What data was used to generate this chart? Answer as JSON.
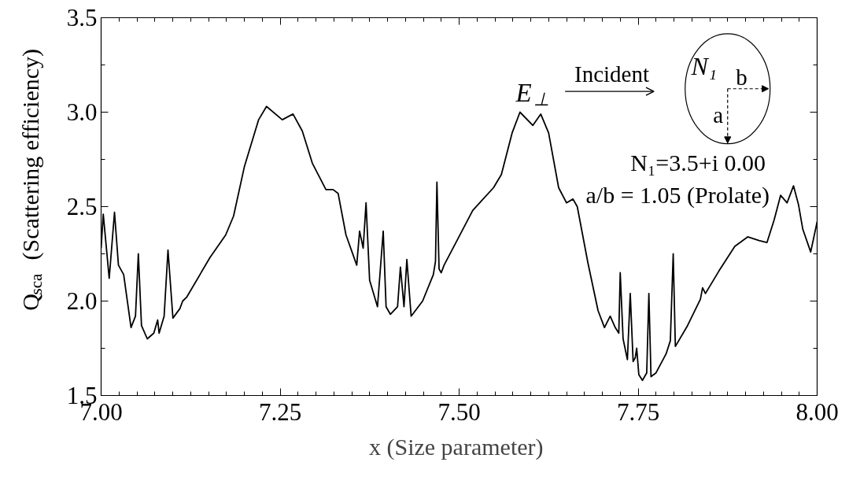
{
  "chart_data": {
    "type": "line",
    "xlabel": "x  (Size parameter)",
    "ylabel": "Q$_{sca}$  (Scattering efficiency)",
    "xlim": [
      7.0,
      8.0
    ],
    "xticks": [
      {
        "value": 7.0,
        "label": "7.00"
      },
      7.25,
      {
        "value": 7.5,
        "label": "7.50"
      },
      7.75,
      {
        "value": 8.0,
        "label": "8.00"
      }
    ],
    "ylim": [
      1.5,
      3.5
    ],
    "yticks": [
      1.5,
      {
        "value": 2.0,
        "label": "2.0"
      },
      2.5,
      {
        "value": 3.0,
        "label": "3.0"
      },
      3.5
    ],
    "grid": false,
    "marker": "none",
    "line_style": "solid",
    "annotations": [
      "E$_{⊥}$",
      "Incident",
      "N₁",
      "b",
      "a",
      "N₁=3.5+i 0.00",
      "a/b = 1.05 (Prolate)"
    ],
    "series": [
      {
        "color": "#000000",
        "x": [
          7.0,
          7.003,
          7.0113,
          7.0187,
          7.0242,
          7.0315,
          7.0418,
          7.048,
          7.052,
          7.0564,
          7.0645,
          7.0736,
          7.079,
          7.081,
          7.088,
          7.0934,
          7.1003,
          7.11,
          7.1139,
          7.1194,
          7.152,
          7.174,
          7.185,
          7.2,
          7.22,
          7.231,
          7.253,
          7.268,
          7.281,
          7.295,
          7.314,
          7.324,
          7.331,
          7.342,
          7.357,
          7.361,
          7.366,
          7.37,
          7.375,
          7.386,
          7.394,
          7.398,
          7.404,
          7.414,
          7.418,
          7.423,
          7.427,
          7.433,
          7.449,
          7.464,
          7.467,
          7.469,
          7.472,
          7.475,
          7.479,
          7.497,
          7.519,
          7.548,
          7.559,
          7.574,
          7.585,
          7.603,
          7.614,
          7.625,
          7.639,
          7.65,
          7.659,
          7.665,
          7.68,
          7.694,
          7.703,
          7.711,
          7.718,
          7.723,
          7.725,
          7.729,
          7.735,
          7.739,
          7.743,
          7.746,
          7.748,
          7.751,
          7.756,
          7.762,
          7.765,
          7.768,
          7.775,
          7.789,
          7.795,
          7.799,
          7.802,
          7.819,
          7.837,
          7.84,
          7.844,
          7.863,
          7.885,
          7.903,
          7.919,
          7.93,
          7.94,
          7.949,
          7.958,
          7.967,
          7.974,
          7.98,
          7.991,
          8.0
        ],
        "values": [
          2.28,
          2.46,
          2.12,
          2.47,
          2.19,
          2.14,
          1.86,
          1.92,
          2.25,
          1.87,
          1.8,
          1.83,
          1.9,
          1.83,
          1.92,
          2.27,
          1.91,
          1.96,
          2.0,
          2.02,
          2.23,
          2.35,
          2.45,
          2.71,
          2.96,
          3.03,
          2.96,
          2.99,
          2.9,
          2.73,
          2.59,
          2.59,
          2.57,
          2.35,
          2.19,
          2.37,
          2.28,
          2.52,
          2.11,
          1.97,
          2.37,
          1.97,
          1.93,
          1.97,
          2.18,
          1.97,
          2.22,
          1.92,
          2.0,
          2.14,
          2.21,
          2.63,
          2.17,
          2.15,
          2.19,
          2.32,
          2.48,
          2.6,
          2.67,
          2.89,
          3.0,
          2.93,
          2.99,
          2.89,
          2.6,
          2.52,
          2.54,
          2.5,
          2.2,
          1.95,
          1.86,
          1.92,
          1.86,
          1.83,
          2.15,
          1.8,
          1.69,
          2.04,
          1.68,
          1.7,
          1.75,
          1.61,
          1.58,
          1.62,
          2.04,
          1.6,
          1.62,
          1.72,
          1.79,
          2.25,
          1.76,
          1.87,
          2.01,
          2.07,
          2.04,
          2.16,
          2.29,
          2.34,
          2.32,
          2.31,
          2.43,
          2.56,
          2.52,
          2.61,
          2.51,
          2.38,
          2.26,
          2.42
        ]
      }
    ]
  }
}
